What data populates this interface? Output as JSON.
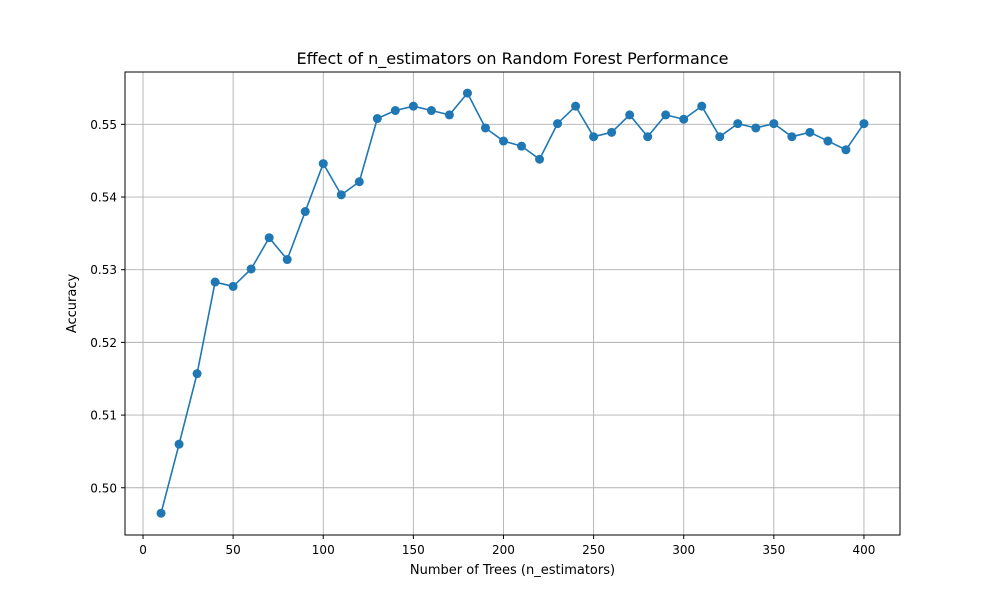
{
  "chart_data": {
    "type": "line",
    "title": "Effect of n_estimators on Random Forest Performance",
    "xlabel": "Number of Trees (n_estimators)",
    "ylabel": "Accuracy",
    "xlim": [
      -10,
      420
    ],
    "ylim": [
      0.4935,
      0.5572
    ],
    "x_ticks": [
      0,
      50,
      100,
      150,
      200,
      250,
      300,
      350,
      400
    ],
    "y_ticks": [
      0.5,
      0.51,
      0.52,
      0.53,
      0.54,
      0.55
    ],
    "y_tick_labels": [
      "0.50",
      "0.51",
      "0.52",
      "0.53",
      "0.54",
      "0.55"
    ],
    "grid": true,
    "marker": "circle",
    "color": "#1f77b4",
    "series": [
      {
        "x": [
          10,
          20,
          30,
          40,
          50,
          60,
          70,
          80,
          90,
          100,
          110,
          120,
          130,
          140,
          150,
          160,
          170,
          180,
          190,
          200,
          210,
          220,
          230,
          240,
          250,
          260,
          270,
          280,
          290,
          300,
          310,
          320,
          330,
          340,
          350,
          360,
          370,
          380,
          390,
          400
        ],
        "y": [
          0.4965,
          0.506,
          0.5157,
          0.5283,
          0.5277,
          0.5301,
          0.5344,
          0.5314,
          0.538,
          0.5446,
          0.5403,
          0.5421,
          0.5508,
          0.5519,
          0.5525,
          0.5519,
          0.5513,
          0.5543,
          0.5495,
          0.5477,
          0.547,
          0.5452,
          0.5501,
          0.5525,
          0.5483,
          0.5489,
          0.5513,
          0.5483,
          0.5513,
          0.5507,
          0.5525,
          0.5483,
          0.5501,
          0.5495,
          0.5501,
          0.5483,
          0.5489,
          0.5477,
          0.5465,
          0.5501
        ]
      }
    ]
  }
}
